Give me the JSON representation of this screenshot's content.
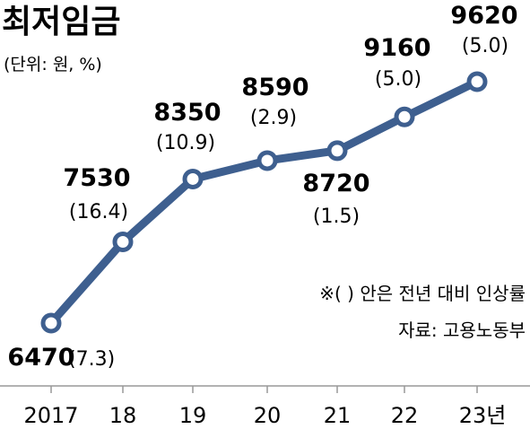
{
  "title": "최저임금",
  "unit": "(단위: 원, %)",
  "note": "※( ) 안은 전년 대비 인상률",
  "source": "자료: 고용노동부",
  "colors": {
    "line": "#3e5f8f",
    "marker_fill": "#ffffff",
    "text": "#1a1a1a"
  },
  "chart_data": {
    "type": "line",
    "categories": [
      "2017",
      "18",
      "19",
      "20",
      "21",
      "22",
      "23년"
    ],
    "series": [
      {
        "values": [
          6470,
          7530,
          8350,
          8590,
          8720,
          9160,
          9620
        ]
      }
    ],
    "value_labels": [
      "6470",
      "7530",
      "8350",
      "8590",
      "8720",
      "9160",
      "9620"
    ],
    "rate_labels": [
      "(7.3)",
      "(16.4)",
      "(10.9)",
      "(2.9)",
      "(1.5)",
      "(5.0)",
      "(5.0)"
    ],
    "ylim": [
      6200,
      9800
    ],
    "grid": false,
    "legend": "none"
  }
}
